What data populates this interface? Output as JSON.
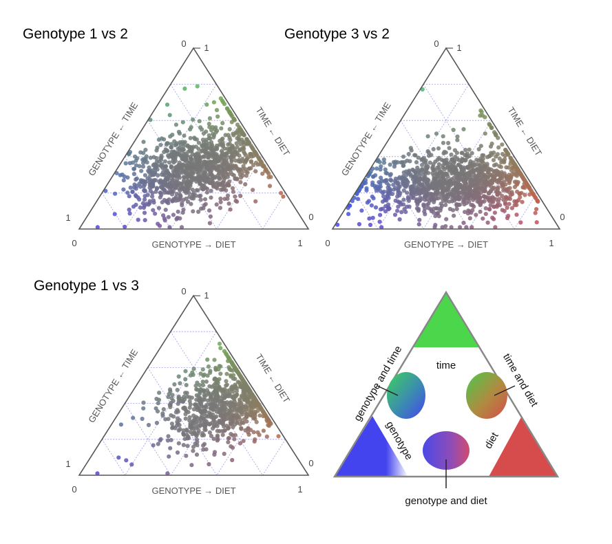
{
  "chart_data": [
    {
      "type": "scatter",
      "title": "Genotype 1 vs 2",
      "ternary": true,
      "axis_labels": {
        "bottom": "GENOTYPE → DIET",
        "left": "GENOTYPE ← TIME",
        "right": "TIME ← DIET"
      },
      "tick_labels": {
        "top": [
          "0",
          "1"
        ],
        "left": "1",
        "right": "0",
        "bottom_left": "0",
        "bottom_right": "1"
      },
      "point_count_approx": 1100,
      "distribution": {
        "center": [
          0.35,
          0.33
        ],
        "spread": [
          0.14,
          0.11
        ],
        "outliers": "a few points near the top (high time) and scattered toward the lower-right (diet)"
      },
      "grid": true
    },
    {
      "type": "scatter",
      "title": "Genotype 3 vs 2",
      "ternary": true,
      "axis_labels": {
        "bottom": "GENOTYPE → DIET",
        "left": "GENOTYPE ← TIME",
        "right": "TIME ← DIET"
      },
      "tick_labels": {
        "top": [
          "0",
          "1"
        ],
        "left": "",
        "right": "0",
        "bottom_left": "0",
        "bottom_right": "1"
      },
      "point_count_approx": 1300,
      "distribution": {
        "center": [
          0.42,
          0.25
        ],
        "spread": [
          0.2,
          0.09
        ],
        "outliers": "broad spread along the bottom edge toward both the genotype and diet corners"
      },
      "grid": true
    },
    {
      "type": "scatter",
      "title": "Genotype 1 vs 3",
      "ternary": true,
      "axis_labels": {
        "bottom": "GENOTYPE → DIET",
        "left": "GENOTYPE ← TIME",
        "right": "TIME ← DIET"
      },
      "tick_labels": {
        "top": [
          "0",
          "1"
        ],
        "left": "1",
        "right": "0",
        "bottom_left": "0",
        "bottom_right": "1"
      },
      "point_count_approx": 900,
      "distribution": {
        "center": [
          0.45,
          0.4
        ],
        "spread": [
          0.13,
          0.12
        ],
        "outliers": "a few points near the top (high time)"
      },
      "grid": true
    }
  ],
  "legend": {
    "regions": [
      {
        "label": "time",
        "color": "#4cd64c"
      },
      {
        "label": "genotype",
        "color": "#4444ee"
      },
      {
        "label": "diet",
        "color": "#d64c4c"
      },
      {
        "label": "genotype and time"
      },
      {
        "label": "time and diet"
      },
      {
        "label": "genotype and diet"
      }
    ]
  },
  "colors": {
    "genotype": "#4444ee",
    "time": "#4cd64c",
    "diet": "#d64c4c",
    "neutral": "#777777"
  }
}
